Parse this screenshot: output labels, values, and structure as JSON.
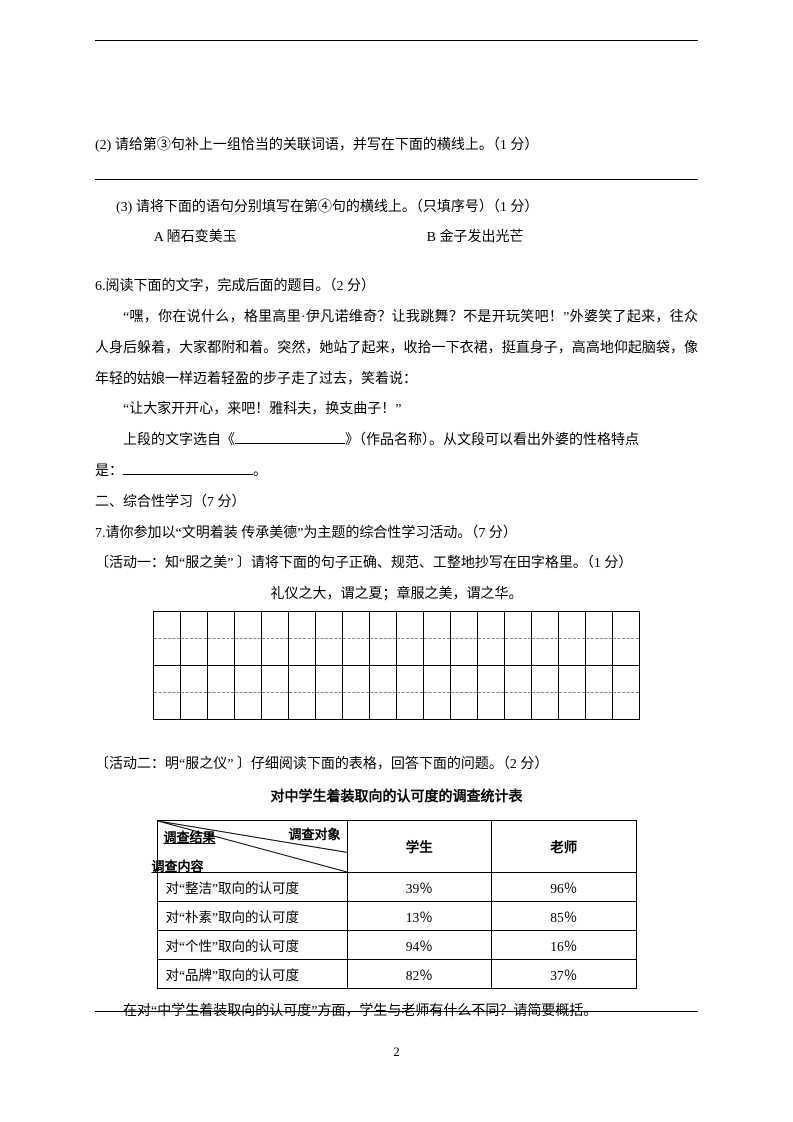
{
  "q2": {
    "text": "(2) 请给第③句补上一组恰当的关联词语，并写在下面的横线上。（1 分）"
  },
  "q3": {
    "text": "(3) 请将下面的语句分别填写在第④句的横线上。（只填序号）（1 分）",
    "optA": "A 陋石变美玉",
    "optB": "B 金子发出光芒"
  },
  "q6": {
    "head": "6.阅读下面的文字，完成后面的题目。（2 分）",
    "para1": "“嘿，你在说什么，格里高里·伊凡诺维奇？让我跳舞？不是开玩笑吧！”外婆笑了起来，往众人身后躲着，大家都附和着。突然，她站了起来，收拾一下衣裙，挺直身子，高高地仰起脑袋，像年轻的姑娘一样迈着轻盈的步子走了过去，笑着说：",
    "para2": "“让大家开开心，来吧！雅科夫，换支曲子！”",
    "para3a": "上段的文字选自《",
    "para3b": "》（作品名称）。从文段可以看出外婆的性格特点",
    "para3c": "是："
  },
  "sec2": {
    "title": "二、综合性学习（7 分）"
  },
  "q7": {
    "head": "7.请你参加以“文明着装 传承美德”为主题的综合性学习活动。（7 分）",
    "act1": "〔活动一：知“服之美” 〕请将下面的句子正确、规范、工整地抄写在田字格里。（1 分）",
    "act1_sentence": "礼仪之大，谓之夏；章服之美，谓之华。",
    "act2": "〔活动二：明“服之仪” 〕仔细阅读下面的表格，回答下面的问题。（2 分）",
    "table_title": "对中学生着装取向的认可度的调查统计表",
    "diag_tr": "调查对象",
    "diag_tl": "调查结果",
    "diag_bl": "调查内容",
    "col_student": "学生",
    "col_teacher": "老师",
    "rows": [
      {
        "label": "对“整洁”取向的认可度",
        "s": "39％",
        "t": "96％"
      },
      {
        "label": "对“朴素”取向的认可度",
        "s": "13％",
        "t": "85％"
      },
      {
        "label": "对“个性”取向的认可度",
        "s": "94％",
        "t": "16％"
      },
      {
        "label": "对“品牌”取向的认可度",
        "s": "82％",
        "t": "37％"
      }
    ],
    "question": "在对“中学生着装取向的认可度”方面，学生与老师有什么不同？请简要概括。"
  },
  "page_number": "2",
  "grid": {
    "cols": 18,
    "rowpairs": 2
  }
}
